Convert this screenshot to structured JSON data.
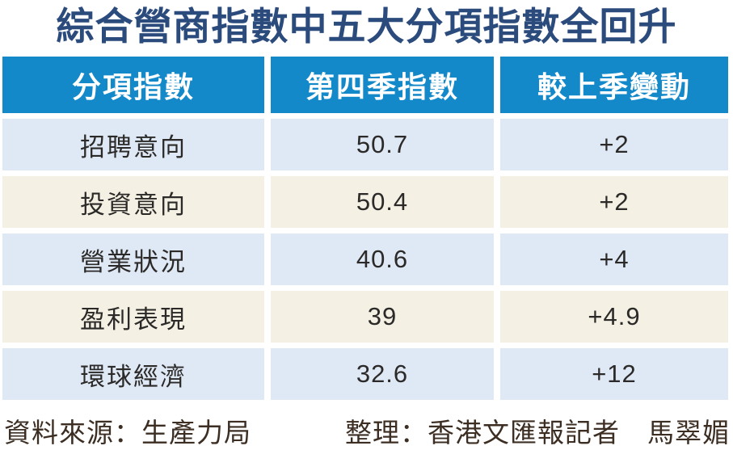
{
  "title": "綜合營商指數中五大分項指數全回升",
  "table": {
    "headers": [
      "分項指數",
      "第四季指數",
      "較上季變動"
    ],
    "rows": [
      {
        "label": "招聘意向",
        "q4": "50.7",
        "change": "+2"
      },
      {
        "label": "投資意向",
        "q4": "50.4",
        "change": "+2"
      },
      {
        "label": "營業狀況",
        "q4": "40.6",
        "change": "+4"
      },
      {
        "label": "盈利表現",
        "q4": "39",
        "change": "+4.9"
      },
      {
        "label": "環球經濟",
        "q4": "32.6",
        "change": "+12"
      }
    ]
  },
  "footer": {
    "source": "資料來源：生產力局",
    "credit": "整理：香港文匯報記者　馬翠媚"
  },
  "colors": {
    "header_bg": "#1489c9",
    "row_blue": "#dfe8f5",
    "row_cream": "#f4f0e3",
    "title_text": "#2b4b7d",
    "body_text": "#2b2a28",
    "footer_text": "#3c2e23"
  },
  "chart_data": {
    "type": "table",
    "title": "綜合營商指數中五大分項指數全回升",
    "columns": [
      "分項指數",
      "第四季指數",
      "較上季變動"
    ],
    "rows": [
      [
        "招聘意向",
        50.7,
        "+2"
      ],
      [
        "投資意向",
        50.4,
        "+2"
      ],
      [
        "營業狀況",
        40.6,
        "+4"
      ],
      [
        "盈利表現",
        39,
        "+4.9"
      ],
      [
        "環球經濟",
        32.6,
        "+12"
      ]
    ]
  }
}
